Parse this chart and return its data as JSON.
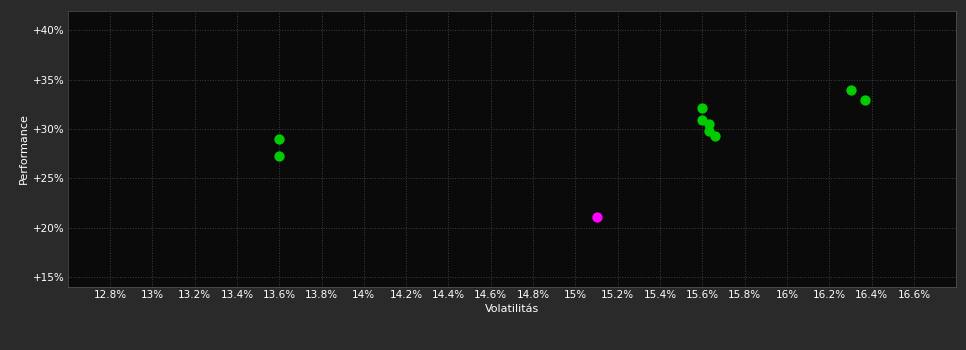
{
  "background_color": "#2a2a2a",
  "plot_bg_color": "#0a0a0a",
  "grid_color": "#404040",
  "text_color": "#ffffff",
  "xlabel": "Volatilitás",
  "ylabel": "Performance",
  "xlim": [
    0.126,
    0.168
  ],
  "ylim": [
    0.14,
    0.42
  ],
  "xticks": [
    0.128,
    0.13,
    0.132,
    0.134,
    0.136,
    0.138,
    0.14,
    0.142,
    0.144,
    0.146,
    0.148,
    0.15,
    0.152,
    0.154,
    0.156,
    0.158,
    0.16,
    0.162,
    0.164,
    0.166
  ],
  "yticks": [
    0.15,
    0.2,
    0.25,
    0.3,
    0.35,
    0.4
  ],
  "ytick_labels": [
    "+15%",
    "+20%",
    "+25%",
    "+30%",
    "+35%",
    "+40%"
  ],
  "xtick_labels": [
    "12.8%",
    "13%",
    "13.2%",
    "13.4%",
    "13.6%",
    "13.8%",
    "14%",
    "14.2%",
    "14.4%",
    "14.6%",
    "14.8%",
    "15%",
    "15.2%",
    "15.4%",
    "15.6%",
    "15.8%",
    "16%",
    "16.2%",
    "16.4%",
    "16.6%"
  ],
  "green_points": [
    [
      0.136,
      0.29
    ],
    [
      0.136,
      0.273
    ],
    [
      0.156,
      0.321
    ],
    [
      0.156,
      0.309
    ],
    [
      0.1563,
      0.305
    ],
    [
      0.1563,
      0.298
    ],
    [
      0.1566,
      0.293
    ],
    [
      0.163,
      0.34
    ],
    [
      0.1637,
      0.329
    ]
  ],
  "magenta_points": [
    [
      0.151,
      0.211
    ]
  ],
  "green_color": "#00cc00",
  "magenta_color": "#ff00ff",
  "marker_size": 55,
  "xlabel_fontsize": 8,
  "ylabel_fontsize": 8,
  "tick_fontsize": 7.5
}
